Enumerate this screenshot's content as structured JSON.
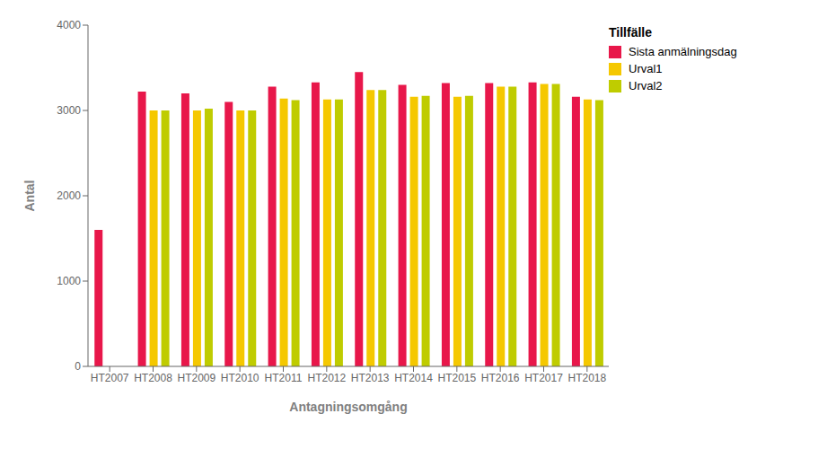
{
  "chart_data": {
    "type": "bar",
    "categories": [
      "HT2007",
      "HT2008",
      "HT2009",
      "HT2010",
      "HT2011",
      "HT2012",
      "HT2013",
      "HT2014",
      "HT2015",
      "HT2016",
      "HT2017",
      "HT2018"
    ],
    "series": [
      {
        "name": "Sista anmälningsdag",
        "color": "#E8174A",
        "values": [
          1600,
          3220,
          3200,
          3100,
          3280,
          3330,
          3450,
          3300,
          3320,
          3320,
          3330,
          3160
        ]
      },
      {
        "name": "Urval1",
        "color": "#F5C800",
        "values": [
          0,
          3000,
          3000,
          3000,
          3140,
          3130,
          3240,
          3160,
          3160,
          3280,
          3310,
          3130
        ]
      },
      {
        "name": "Urval2",
        "color": "#BFCC00",
        "values": [
          0,
          3000,
          3020,
          3000,
          3120,
          3130,
          3240,
          3170,
          3170,
          3280,
          3310,
          3120
        ]
      }
    ],
    "legend_title": "Tillfälle",
    "xlabel": "Antagningsomgång",
    "ylabel": "Antal",
    "ylim": [
      0,
      4000
    ],
    "yticks": [
      0,
      1000,
      2000,
      3000,
      4000
    ],
    "grid": false,
    "legend": "right"
  }
}
